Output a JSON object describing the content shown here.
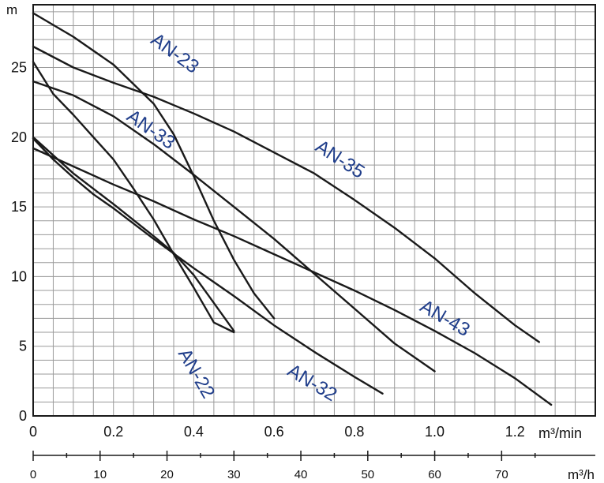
{
  "chart_data": {
    "type": "line",
    "y_unit": "m",
    "x_unit": "m³/min",
    "secondary_x_unit": "m³/h",
    "xlim": [
      0,
      1.4
    ],
    "ylim": [
      0,
      29.5
    ],
    "x_ticks": [
      {
        "value": 0,
        "label": "0"
      },
      {
        "value": 0.2,
        "label": "0.2"
      },
      {
        "value": 0.4,
        "label": "0.4"
      },
      {
        "value": 0.6,
        "label": "0.6"
      },
      {
        "value": 0.8,
        "label": "0.8"
      },
      {
        "value": 1.0,
        "label": "1.0"
      },
      {
        "value": 1.2,
        "label": "1.2"
      }
    ],
    "y_ticks": [
      {
        "value": 0,
        "label": "0"
      },
      {
        "value": 5,
        "label": "5"
      },
      {
        "value": 10,
        "label": "10"
      },
      {
        "value": 15,
        "label": "15"
      },
      {
        "value": 20,
        "label": "20"
      },
      {
        "value": 25,
        "label": "25"
      }
    ],
    "secondary_x_ticks": [
      {
        "value": 0,
        "label": "0"
      },
      {
        "value": 10,
        "label": "10"
      },
      {
        "value": 20,
        "label": "20"
      },
      {
        "value": 30,
        "label": "30"
      },
      {
        "value": 40,
        "label": "40"
      },
      {
        "value": 50,
        "label": "50"
      },
      {
        "value": 60,
        "label": "60"
      },
      {
        "value": 70,
        "label": "70"
      }
    ],
    "grid": true,
    "series": [
      {
        "name": "AN-23",
        "label_pos": [
          0.29,
          26.8
        ],
        "label_angle": 36,
        "x": [
          0,
          0.1,
          0.2,
          0.3,
          0.35,
          0.4,
          0.45,
          0.5,
          0.55,
          0.6
        ],
        "y": [
          28.9,
          27.2,
          25.2,
          22.4,
          20.2,
          17.2,
          14.0,
          11.2,
          8.8,
          7.0
        ]
      },
      {
        "name": "AN-35",
        "label_pos": [
          0.7,
          19.1
        ],
        "label_angle": 33,
        "x": [
          0,
          0.1,
          0.2,
          0.3,
          0.4,
          0.5,
          0.6,
          0.7,
          0.8,
          0.9,
          1.0,
          1.1,
          1.2,
          1.26
        ],
        "y": [
          26.5,
          25.0,
          23.9,
          22.9,
          21.7,
          20.4,
          18.9,
          17.4,
          15.5,
          13.5,
          11.3,
          8.8,
          6.5,
          5.3
        ]
      },
      {
        "name": "AN-33",
        "label_pos": [
          0.23,
          21.3
        ],
        "label_angle": 35,
        "x": [
          0,
          0.05,
          0.1,
          0.15,
          0.2,
          0.25,
          0.3,
          0.35,
          0.4,
          0.45,
          0.5
        ],
        "y": [
          25.4,
          23.1,
          21.6,
          20.0,
          18.4,
          16.3,
          14.1,
          11.6,
          9.2,
          6.7,
          6.0
        ]
      },
      {
        "name": "AN-43",
        "label_pos": [
          0.96,
          7.6
        ],
        "label_angle": 30,
        "x": [
          0,
          0.1,
          0.2,
          0.3,
          0.4,
          0.5,
          0.6,
          0.7,
          0.8,
          0.9,
          1.0,
          1.1,
          1.2,
          1.29
        ],
        "y": [
          19.2,
          17.9,
          16.6,
          15.4,
          14.1,
          12.9,
          11.6,
          10.3,
          9.0,
          7.6,
          6.1,
          4.5,
          2.7,
          0.8
        ]
      },
      {
        "name": "AN-32",
        "label_pos": [
          0.63,
          3.0
        ],
        "label_angle": 31,
        "x": [
          0,
          0.05,
          0.1,
          0.15,
          0.2,
          0.3,
          0.4,
          0.5,
          0.6,
          0.7,
          0.8,
          0.87
        ],
        "y": [
          19.9,
          18.4,
          17.1,
          15.9,
          14.9,
          12.7,
          10.6,
          8.6,
          6.5,
          4.6,
          2.8,
          1.6
        ]
      },
      {
        "name": "AN-22",
        "label_pos": [
          0.36,
          4.5
        ],
        "label_angle": 60,
        "x": [
          0,
          0.1,
          0.2,
          0.3,
          0.4,
          0.5,
          0.6,
          0.7,
          0.8,
          0.9,
          1.0
        ],
        "y": [
          24.0,
          23.0,
          21.5,
          19.5,
          17.3,
          15.0,
          12.7,
          10.2,
          7.7,
          5.2,
          3.2
        ]
      },
      {
        "name": "",
        "label_pos": null,
        "label_angle": 0,
        "x": [
          0,
          0.1,
          0.2,
          0.3,
          0.35,
          0.4,
          0.45,
          0.5
        ],
        "y": [
          20.0,
          17.4,
          15.2,
          12.9,
          11.7,
          10.1,
          8.1,
          6.1
        ]
      }
    ]
  }
}
